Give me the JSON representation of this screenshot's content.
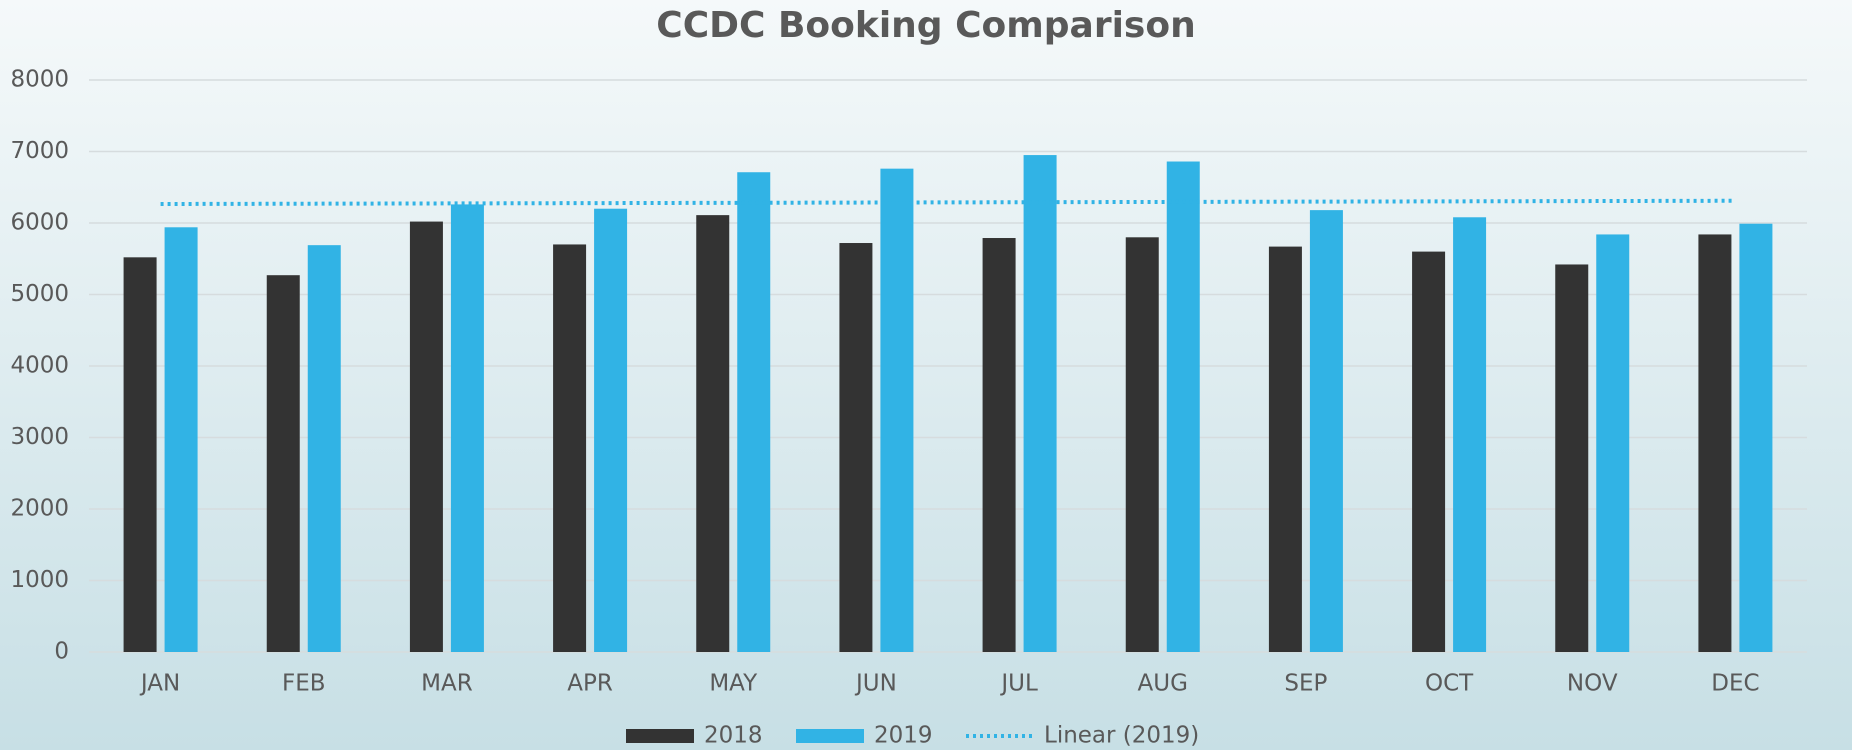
{
  "chart_data": {
    "type": "bar",
    "title": "CCDC Booking Comparison",
    "categories": [
      "JAN",
      "FEB",
      "MAR",
      "APR",
      "MAY",
      "JUN",
      "JUL",
      "AUG",
      "SEP",
      "OCT",
      "NOV",
      "DEC"
    ],
    "series": [
      {
        "name": "2018",
        "color": "#333333",
        "values": [
          5520,
          5270,
          6020,
          5700,
          6110,
          5720,
          5790,
          5800,
          5670,
          5600,
          5420,
          5840
        ]
      },
      {
        "name": "2019",
        "color": "#31b3e5",
        "values": [
          5940,
          5690,
          6260,
          6200,
          6710,
          6760,
          6950,
          6860,
          6180,
          6080,
          5840,
          5990
        ],
        "trendline": {
          "name": "Linear (2019)",
          "style": "dotted"
        }
      }
    ],
    "ylim": [
      0,
      8000
    ],
    "yticks": [
      0,
      1000,
      2000,
      3000,
      4000,
      5000,
      6000,
      7000,
      8000
    ],
    "grid": true,
    "legend": "bottom"
  }
}
